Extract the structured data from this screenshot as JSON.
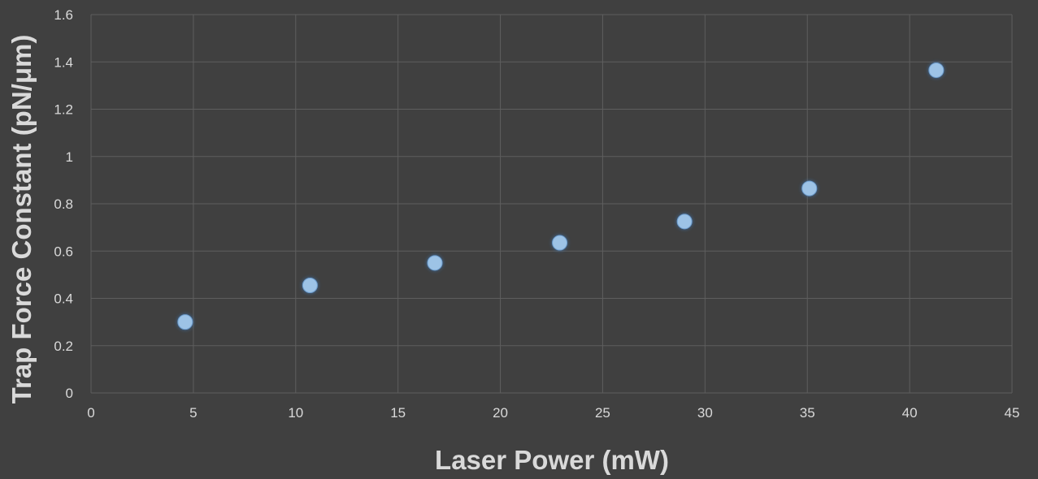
{
  "chart_data": {
    "type": "scatter",
    "title": "",
    "xlabel": "Laser Power (mW)",
    "ylabel": "Trap Force Constant (pN/μm)",
    "xlim": [
      0,
      45
    ],
    "ylim": [
      0,
      1.6
    ],
    "xticks": [
      0,
      5,
      10,
      15,
      20,
      25,
      30,
      35,
      40,
      45
    ],
    "yticks": [
      0,
      0.2,
      0.4,
      0.6,
      0.8,
      1,
      1.2,
      1.4,
      1.6
    ],
    "grid": true,
    "legend": "none",
    "series": [
      {
        "color": "#9dc3e6",
        "points": [
          {
            "x": 4.6,
            "y": 0.3
          },
          {
            "x": 10.7,
            "y": 0.455
          },
          {
            "x": 16.8,
            "y": 0.55
          },
          {
            "x": 22.9,
            "y": 0.635
          },
          {
            "x": 29.0,
            "y": 0.725
          },
          {
            "x": 35.1,
            "y": 0.865
          },
          {
            "x": 41.3,
            "y": 1.365
          }
        ]
      }
    ]
  },
  "colors": {
    "background": "#404040",
    "grid": "#5e5e5e",
    "text": "#d9d9d9",
    "marker": "#9dc3e6"
  }
}
